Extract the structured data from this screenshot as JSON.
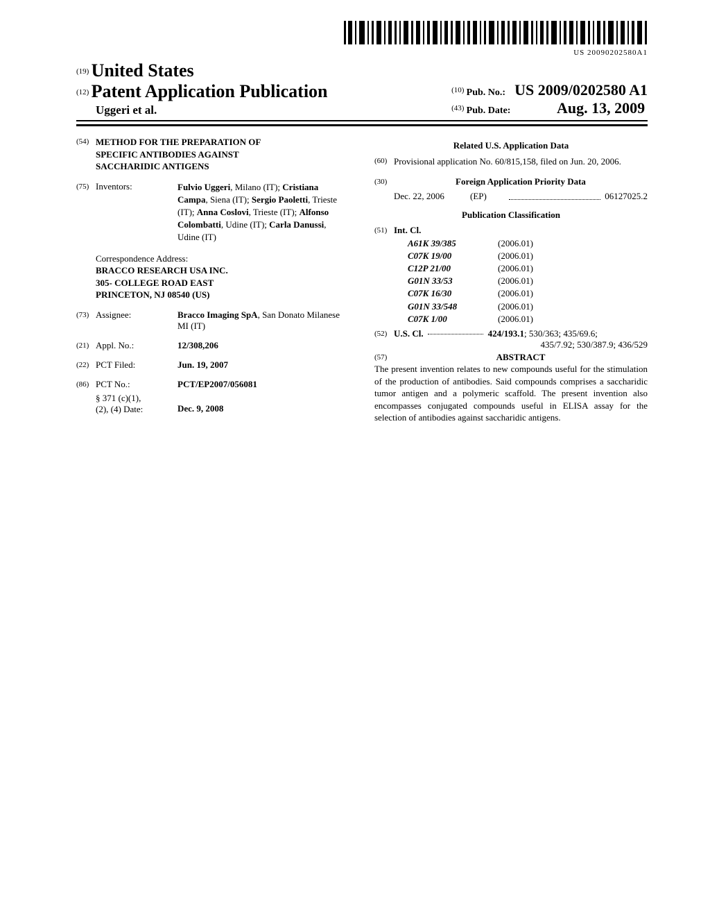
{
  "barcode": {
    "text": "US 20090202580A1"
  },
  "header": {
    "code19": "(19)",
    "country": "United States",
    "code12": "(12)",
    "pub_type": "Patent Application Publication",
    "authors_line": "Uggeri et al.",
    "code10": "(10)",
    "pub_no_label": "Pub. No.:",
    "pub_no_value": "US 2009/0202580 A1",
    "code43": "(43)",
    "pub_date_label": "Pub. Date:",
    "pub_date_value": "Aug. 13, 2009"
  },
  "left": {
    "code54": "(54)",
    "title_l1": "METHOD FOR THE PREPARATION OF",
    "title_l2": "SPECIFIC ANTIBODIES AGAINST",
    "title_l3": "SACCHARIDIC ANTIGENS",
    "code75": "(75)",
    "inventors_label": "Inventors:",
    "inventors_html": "Fulvio Uggeri, Milano (IT); Cristiana Campa, Siena (IT); Sergio Paoletti, Trieste (IT); Anna Coslovi, Trieste (IT); Alfonso Colombatti, Udine (IT); Carla Danussi, Udine (IT)",
    "inventors_bold": [
      "Fulvio Uggeri",
      "Cristiana Campa",
      "Sergio Paoletti",
      "Anna Coslovi",
      "Alfonso Colombatti",
      "Carla Danussi"
    ],
    "corr_label": "Correspondence Address:",
    "corr_l1": "BRACCO RESEARCH USA INC.",
    "corr_l2": "305- COLLEGE ROAD EAST",
    "corr_l3": "PRINCETON, NJ 08540 (US)",
    "code73": "(73)",
    "assignee_label": "Assignee:",
    "assignee_bold": "Bracco Imaging SpA",
    "assignee_rest": ", San Donato Milanese MI (IT)",
    "code21": "(21)",
    "appl_label": "Appl. No.:",
    "appl_value": "12/308,206",
    "code22": "(22)",
    "pctfiled_label": "PCT Filed:",
    "pctfiled_value": "Jun. 19, 2007",
    "code86": "(86)",
    "pctno_label": "PCT No.:",
    "pctno_value": "PCT/EP2007/056081",
    "s371_l1": "§ 371 (c)(1),",
    "s371_l2": "(2), (4) Date:",
    "s371_value": "Dec. 9, 2008"
  },
  "right": {
    "related_hd": "Related U.S. Application Data",
    "code60": "(60)",
    "related_text": "Provisional application No. 60/815,158, filed on Jun. 20, 2006.",
    "code30": "(30)",
    "foreign_hd": "Foreign Application Priority Data",
    "foreign_date": "Dec. 22, 2006",
    "foreign_cc": "(EP)",
    "foreign_num": "06127025.2",
    "pubclass_hd": "Publication Classification",
    "code51": "(51)",
    "intcl_label": "Int. Cl.",
    "ipc": [
      {
        "code": "A61K 39/385",
        "year": "(2006.01)"
      },
      {
        "code": "C07K 19/00",
        "year": "(2006.01)"
      },
      {
        "code": "C12P 21/00",
        "year": "(2006.01)"
      },
      {
        "code": "G01N 33/53",
        "year": "(2006.01)"
      },
      {
        "code": "C07K 16/30",
        "year": "(2006.01)"
      },
      {
        "code": "G01N 33/548",
        "year": "(2006.01)"
      },
      {
        "code": "C07K 1/00",
        "year": "(2006.01)"
      }
    ],
    "code52": "(52)",
    "uscl_label": "U.S. Cl.",
    "uscl_bold": "424/193.1",
    "uscl_rest1": "; 530/363; 435/69.6;",
    "uscl_rest2": "435/7.92; 530/387.9; 436/529",
    "code57": "(57)",
    "abstract_hd": "ABSTRACT",
    "abstract_body": "The present invention relates to new compounds useful for the stimulation of the production of antibodies. Said compounds comprises a saccharidic tumor antigen and a polymeric scaffold. The present invention also encompasses conjugated compounds useful in ELISA assay for the selection of antibodies against saccharidic antigens."
  }
}
